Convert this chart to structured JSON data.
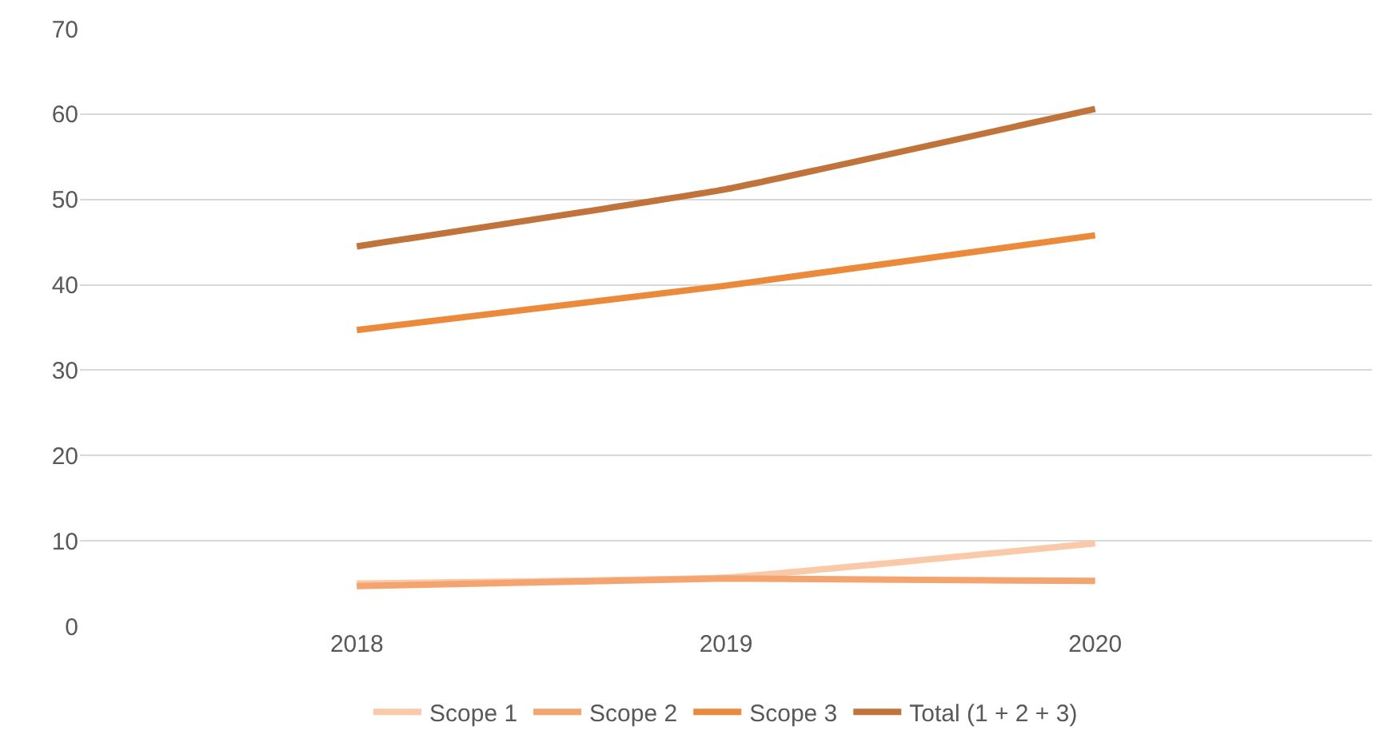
{
  "chart_data": {
    "type": "line",
    "categories": [
      "2018",
      "2019",
      "2020"
    ],
    "series": [
      {
        "name": "Scope 1",
        "color": "#f9c9aa",
        "values": [
          5.0,
          5.7,
          9.7
        ]
      },
      {
        "name": "Scope 2",
        "color": "#f4a46e",
        "values": [
          4.7,
          5.6,
          5.3
        ]
      },
      {
        "name": "Scope 3",
        "color": "#ec8a3b",
        "values": [
          34.7,
          39.9,
          45.8
        ]
      },
      {
        "name": "Total (1 + 2 + 3)",
        "color": "#c0733a",
        "values": [
          44.5,
          51.2,
          60.6
        ]
      }
    ],
    "ylim": [
      0,
      70
    ],
    "yticks": [
      0,
      10,
      20,
      30,
      40,
      50,
      60,
      70
    ],
    "grid": "y",
    "legend": "bottom",
    "marker": "none",
    "line_style": "solid"
  }
}
